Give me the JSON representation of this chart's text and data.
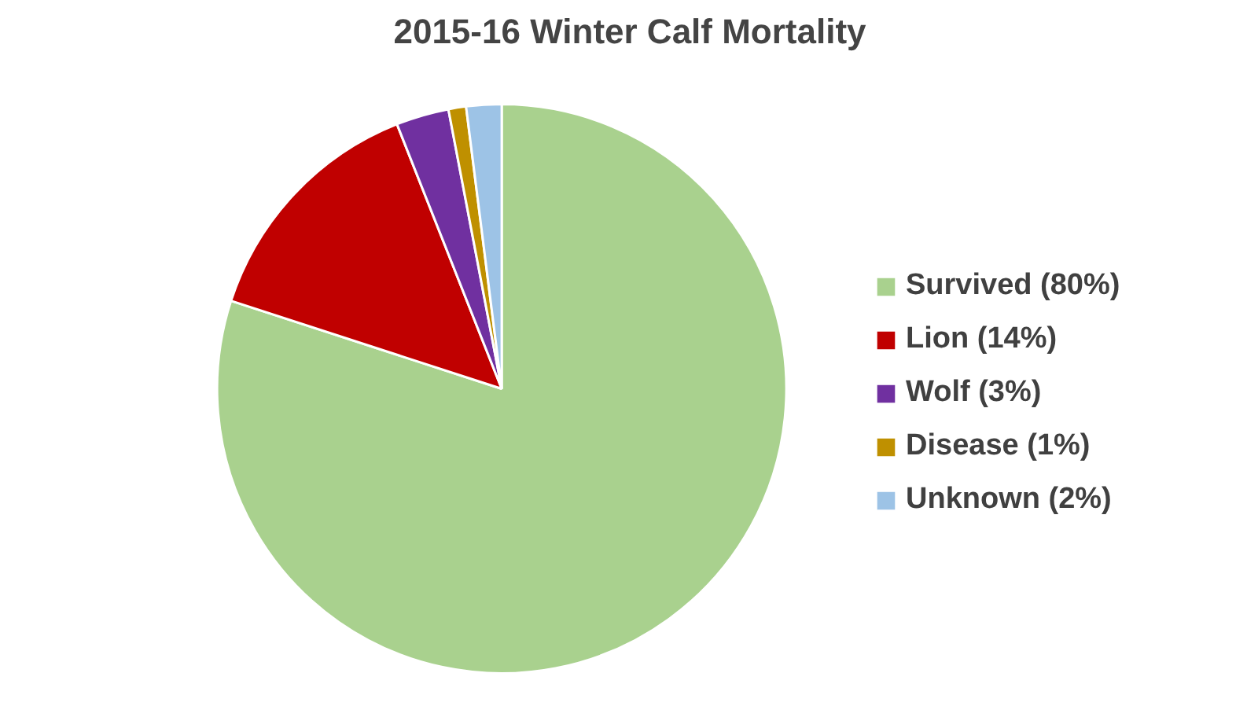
{
  "chart_data": {
    "type": "pie",
    "title": "2015-16 Winter Calf Mortality",
    "categories": [
      "Survived (80%)",
      "Lion (14%)",
      "Wolf (3%)",
      "Disease (1%)",
      "Unknown (2%)"
    ],
    "values": [
      80,
      14,
      3,
      1,
      2
    ],
    "colors": [
      "#a9d18e",
      "#c00000",
      "#7030a0",
      "#bf9000",
      "#9dc3e6"
    ],
    "legend": "right"
  }
}
